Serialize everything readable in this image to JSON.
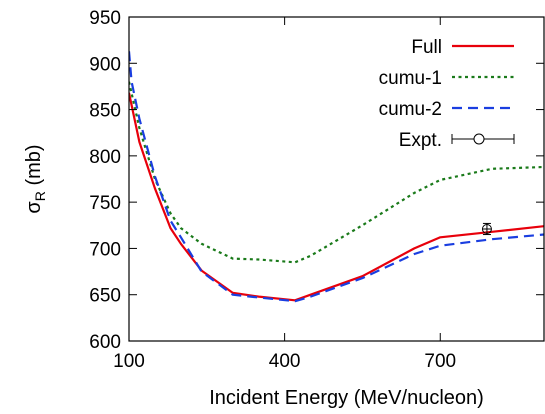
{
  "chart_data": {
    "type": "line",
    "title": "",
    "xlabel": "Incident Energy (MeV/nucleon)",
    "ylabel_main": "σ",
    "ylabel_sub": "R",
    "ylabel_unit": " (mb)",
    "xlim": [
      100,
      900
    ],
    "ylim": [
      600,
      950
    ],
    "xticks": [
      100,
      400,
      700
    ],
    "yticks": [
      600,
      650,
      700,
      750,
      800,
      850,
      900,
      950
    ],
    "grid": false,
    "legend_position": "top-right",
    "series": [
      {
        "name": "Full",
        "color": "#e8000b",
        "style": "solid",
        "x": [
          100,
          120,
          150,
          180,
          200,
          240,
          300,
          350,
          420,
          450,
          550,
          650,
          700,
          800,
          900
        ],
        "y": [
          868,
          815,
          765,
          722,
          705,
          676,
          652,
          648,
          644,
          650,
          670,
          700,
          712,
          718,
          724
        ]
      },
      {
        "name": "cumu-1",
        "color": "#1a7a1a",
        "style": "dotted",
        "x": [
          100,
          120,
          150,
          180,
          200,
          240,
          300,
          350,
          420,
          450,
          550,
          650,
          700,
          750,
          800,
          900
        ],
        "y": [
          880,
          830,
          775,
          738,
          722,
          705,
          689,
          688,
          685,
          692,
          725,
          760,
          774,
          780,
          786,
          788
        ]
      },
      {
        "name": "cumu-2",
        "color": "#1a3ee0",
        "style": "dashed",
        "x": [
          100,
          105,
          120,
          150,
          180,
          200,
          240,
          300,
          350,
          420,
          450,
          550,
          650,
          700,
          800,
          900
        ],
        "y": [
          913,
          880,
          840,
          778,
          730,
          712,
          675,
          650,
          647,
          643,
          648,
          668,
          694,
          703,
          710,
          715
        ]
      }
    ],
    "experiment": {
      "name": "Expt.",
      "x": 790,
      "y": 721,
      "yerr": 6,
      "xerr": 8
    }
  }
}
